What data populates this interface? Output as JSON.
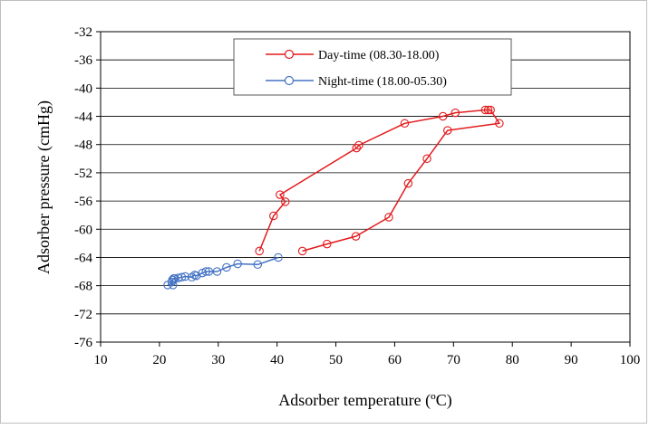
{
  "chart_data": {
    "type": "line",
    "title": "",
    "xlabel": "Adsorber temperature (ºC)",
    "ylabel": "Adsorber pressure (cmHg)",
    "xlim": [
      10,
      100
    ],
    "ylim": [
      -76,
      -32
    ],
    "xticks": [
      10,
      20,
      30,
      40,
      50,
      60,
      70,
      80,
      90,
      100
    ],
    "yticks": [
      -32,
      -36,
      -40,
      -44,
      -48,
      -52,
      -56,
      -60,
      -64,
      -68,
      -72,
      -76
    ],
    "grid": "horizontal",
    "legend_position": "top-center",
    "series": [
      {
        "name": "Day-time (08.30-18.00)",
        "color": "#e31a1c",
        "marker": "open-circle",
        "points": [
          [
            44.3,
            -63.1
          ],
          [
            48.5,
            -62.1
          ],
          [
            53.4,
            -61.0
          ],
          [
            59.0,
            -58.3
          ],
          [
            62.3,
            -53.5
          ],
          [
            65.5,
            -50.0
          ],
          [
            69.0,
            -46.0
          ],
          [
            77.8,
            -45.0
          ],
          [
            76.3,
            -43.1
          ],
          [
            75.9,
            -43.1
          ],
          [
            75.4,
            -43.1
          ],
          [
            70.3,
            -43.5
          ],
          [
            68.2,
            -44.0
          ],
          [
            61.7,
            -45.0
          ],
          [
            53.9,
            -48.1
          ],
          [
            53.5,
            -48.5
          ],
          [
            40.5,
            -55.1
          ],
          [
            41.4,
            -56.1
          ],
          [
            39.4,
            -58.1
          ],
          [
            37.0,
            -63.1
          ]
        ]
      },
      {
        "name": "Night-time (18.00-05.30)",
        "color": "#4472c4",
        "marker": "open-circle",
        "points": [
          [
            40.2,
            -64.0
          ],
          [
            36.7,
            -65.0
          ],
          [
            33.3,
            -64.9
          ],
          [
            31.4,
            -65.4
          ],
          [
            29.8,
            -66.0
          ],
          [
            28.4,
            -66.0
          ],
          [
            27.9,
            -66.0
          ],
          [
            27.3,
            -66.2
          ],
          [
            26.3,
            -66.6
          ],
          [
            26.0,
            -66.5
          ],
          [
            25.5,
            -66.8
          ],
          [
            24.4,
            -66.7
          ],
          [
            23.8,
            -66.8
          ],
          [
            23.2,
            -66.9
          ],
          [
            22.6,
            -67.0
          ],
          [
            22.4,
            -67.0
          ],
          [
            22.2,
            -67.2
          ],
          [
            22.1,
            -67.5
          ],
          [
            22.3,
            -67.9
          ],
          [
            21.4,
            -67.9
          ]
        ]
      }
    ]
  }
}
